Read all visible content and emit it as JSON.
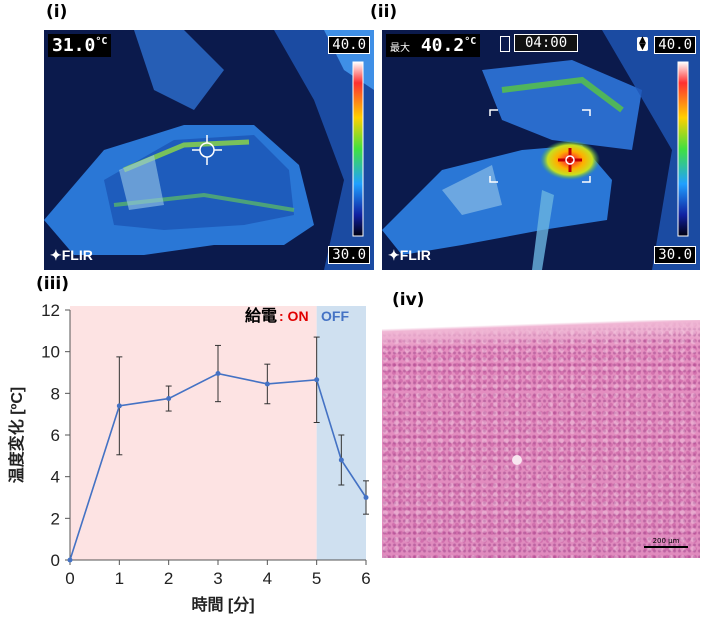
{
  "panels": {
    "i": {
      "label": "(i)",
      "temp_value": "31.0",
      "temp_unit": "°C",
      "scale_max": "40.0",
      "scale_min": "30.0",
      "brand": "FLIR"
    },
    "ii": {
      "label": "(ii)",
      "max_label": "最大",
      "temp_value": "40.2",
      "temp_unit": "°C",
      "timer": "04:00",
      "scale_max": "40.0",
      "scale_min": "30.0",
      "brand": "FLIR"
    },
    "iii": {
      "label": "(iii)"
    },
    "iv": {
      "label": "(iv)",
      "scale_bar_label": "200 μm"
    }
  },
  "colors": {
    "on_region": "#fde3e3",
    "off_region": "#cfe0f0",
    "series": "#4472c4",
    "on_text": "#e00000",
    "off_text": "#4472c4"
  },
  "chart_data": {
    "type": "line",
    "xlabel": "時間 [分]",
    "ylabel": "温度変化 [ºC]",
    "xlim": [
      0,
      6
    ],
    "ylim": [
      0,
      12
    ],
    "xticks": [
      0,
      1,
      2,
      3,
      4,
      5,
      6
    ],
    "yticks": [
      0,
      2,
      4,
      6,
      8,
      10,
      12
    ],
    "grid": false,
    "annotation": {
      "prefix": "給電",
      "on": ": ON",
      "off": "OFF"
    },
    "regions": [
      {
        "label": "ON",
        "from": 0,
        "to": 5
      },
      {
        "label": "OFF",
        "from": 5,
        "to": 6
      }
    ],
    "series": [
      {
        "x": [
          0,
          1,
          2,
          3,
          4,
          5,
          5.5,
          6
        ],
        "y": [
          0,
          7.4,
          7.75,
          8.95,
          8.45,
          8.65,
          4.8,
          3.0
        ],
        "error": [
          0,
          2.35,
          0.6,
          1.35,
          0.95,
          2.05,
          1.2,
          0.8
        ]
      }
    ]
  }
}
